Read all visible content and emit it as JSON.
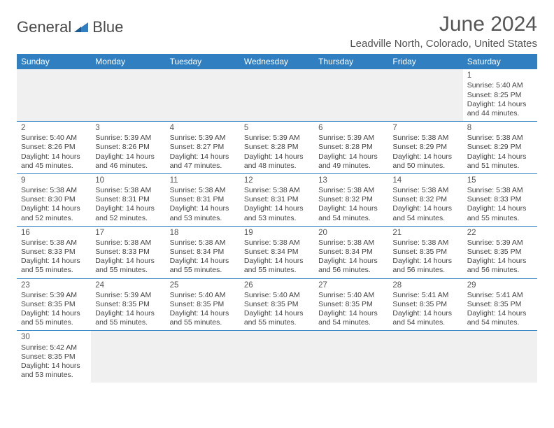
{
  "logo": {
    "text1": "General",
    "text2": "Blue"
  },
  "title": "June 2024",
  "location": "Leadville North, Colorado, United States",
  "colors": {
    "header_bg": "#2f7fc1",
    "header_text": "#ffffff",
    "border": "#2f7fc1",
    "blank_bg": "#f0f0f0",
    "text": "#444444",
    "title_text": "#555555"
  },
  "weekdays": [
    "Sunday",
    "Monday",
    "Tuesday",
    "Wednesday",
    "Thursday",
    "Friday",
    "Saturday"
  ],
  "rows": [
    [
      null,
      null,
      null,
      null,
      null,
      null,
      {
        "n": "1",
        "sr": "5:40 AM",
        "ss": "8:25 PM",
        "dl": "14 hours and 44 minutes."
      }
    ],
    [
      {
        "n": "2",
        "sr": "5:40 AM",
        "ss": "8:26 PM",
        "dl": "14 hours and 45 minutes."
      },
      {
        "n": "3",
        "sr": "5:39 AM",
        "ss": "8:26 PM",
        "dl": "14 hours and 46 minutes."
      },
      {
        "n": "4",
        "sr": "5:39 AM",
        "ss": "8:27 PM",
        "dl": "14 hours and 47 minutes."
      },
      {
        "n": "5",
        "sr": "5:39 AM",
        "ss": "8:28 PM",
        "dl": "14 hours and 48 minutes."
      },
      {
        "n": "6",
        "sr": "5:39 AM",
        "ss": "8:28 PM",
        "dl": "14 hours and 49 minutes."
      },
      {
        "n": "7",
        "sr": "5:38 AM",
        "ss": "8:29 PM",
        "dl": "14 hours and 50 minutes."
      },
      {
        "n": "8",
        "sr": "5:38 AM",
        "ss": "8:29 PM",
        "dl": "14 hours and 51 minutes."
      }
    ],
    [
      {
        "n": "9",
        "sr": "5:38 AM",
        "ss": "8:30 PM",
        "dl": "14 hours and 52 minutes."
      },
      {
        "n": "10",
        "sr": "5:38 AM",
        "ss": "8:31 PM",
        "dl": "14 hours and 52 minutes."
      },
      {
        "n": "11",
        "sr": "5:38 AM",
        "ss": "8:31 PM",
        "dl": "14 hours and 53 minutes."
      },
      {
        "n": "12",
        "sr": "5:38 AM",
        "ss": "8:31 PM",
        "dl": "14 hours and 53 minutes."
      },
      {
        "n": "13",
        "sr": "5:38 AM",
        "ss": "8:32 PM",
        "dl": "14 hours and 54 minutes."
      },
      {
        "n": "14",
        "sr": "5:38 AM",
        "ss": "8:32 PM",
        "dl": "14 hours and 54 minutes."
      },
      {
        "n": "15",
        "sr": "5:38 AM",
        "ss": "8:33 PM",
        "dl": "14 hours and 55 minutes."
      }
    ],
    [
      {
        "n": "16",
        "sr": "5:38 AM",
        "ss": "8:33 PM",
        "dl": "14 hours and 55 minutes."
      },
      {
        "n": "17",
        "sr": "5:38 AM",
        "ss": "8:33 PM",
        "dl": "14 hours and 55 minutes."
      },
      {
        "n": "18",
        "sr": "5:38 AM",
        "ss": "8:34 PM",
        "dl": "14 hours and 55 minutes."
      },
      {
        "n": "19",
        "sr": "5:38 AM",
        "ss": "8:34 PM",
        "dl": "14 hours and 55 minutes."
      },
      {
        "n": "20",
        "sr": "5:38 AM",
        "ss": "8:34 PM",
        "dl": "14 hours and 56 minutes."
      },
      {
        "n": "21",
        "sr": "5:38 AM",
        "ss": "8:35 PM",
        "dl": "14 hours and 56 minutes."
      },
      {
        "n": "22",
        "sr": "5:39 AM",
        "ss": "8:35 PM",
        "dl": "14 hours and 56 minutes."
      }
    ],
    [
      {
        "n": "23",
        "sr": "5:39 AM",
        "ss": "8:35 PM",
        "dl": "14 hours and 55 minutes."
      },
      {
        "n": "24",
        "sr": "5:39 AM",
        "ss": "8:35 PM",
        "dl": "14 hours and 55 minutes."
      },
      {
        "n": "25",
        "sr": "5:40 AM",
        "ss": "8:35 PM",
        "dl": "14 hours and 55 minutes."
      },
      {
        "n": "26",
        "sr": "5:40 AM",
        "ss": "8:35 PM",
        "dl": "14 hours and 55 minutes."
      },
      {
        "n": "27",
        "sr": "5:40 AM",
        "ss": "8:35 PM",
        "dl": "14 hours and 54 minutes."
      },
      {
        "n": "28",
        "sr": "5:41 AM",
        "ss": "8:35 PM",
        "dl": "14 hours and 54 minutes."
      },
      {
        "n": "29",
        "sr": "5:41 AM",
        "ss": "8:35 PM",
        "dl": "14 hours and 54 minutes."
      }
    ],
    [
      {
        "n": "30",
        "sr": "5:42 AM",
        "ss": "8:35 PM",
        "dl": "14 hours and 53 minutes."
      },
      null,
      null,
      null,
      null,
      null,
      null
    ]
  ],
  "labels": {
    "sunrise": "Sunrise:",
    "sunset": "Sunset:",
    "daylight": "Daylight:"
  }
}
